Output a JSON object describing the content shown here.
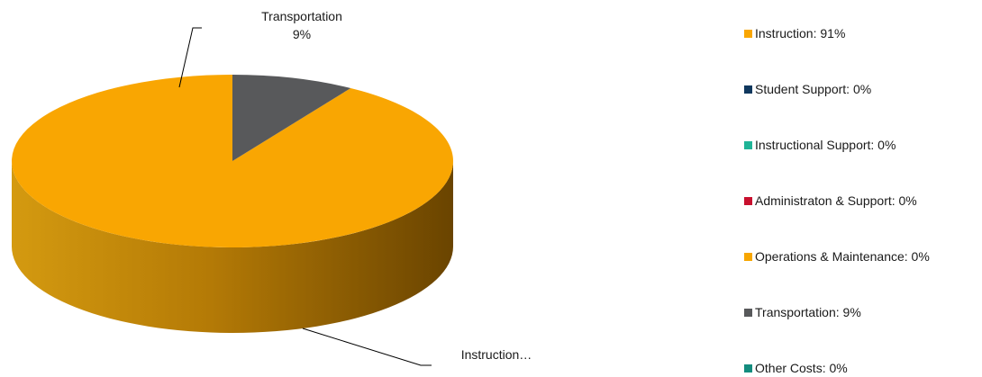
{
  "chart_data": {
    "type": "pie",
    "style": "3d",
    "slices": [
      {
        "label": "Instruction",
        "value": 91,
        "color": "#F9A602",
        "legend": "Instruction: 91%",
        "data_label": "Instruction…",
        "data_label_value": ""
      },
      {
        "label": "Student Support",
        "value": 0,
        "color": "#10385E",
        "legend": "Student Support: 0%"
      },
      {
        "label": "Instructional Support",
        "value": 0,
        "color": "#1FB497",
        "legend": "Instructional Support: 0%"
      },
      {
        "label": "Administraton & Support",
        "value": 0,
        "color": "#C8102E",
        "legend": "Administraton & Support: 0%"
      },
      {
        "label": "Operations & Maintenance",
        "value": 0,
        "color": "#F7A600",
        "legend": "Operations & Maintenance: 0%"
      },
      {
        "label": "Transportation",
        "value": 9,
        "color": "#58595B",
        "legend": "Transportation: 9%",
        "data_label": "Transportation",
        "data_label_value": "9%"
      },
      {
        "label": "Other Costs",
        "value": 0,
        "color": "#138C7E",
        "legend": "Other Costs: 0%"
      }
    ],
    "legend_position": "right"
  }
}
